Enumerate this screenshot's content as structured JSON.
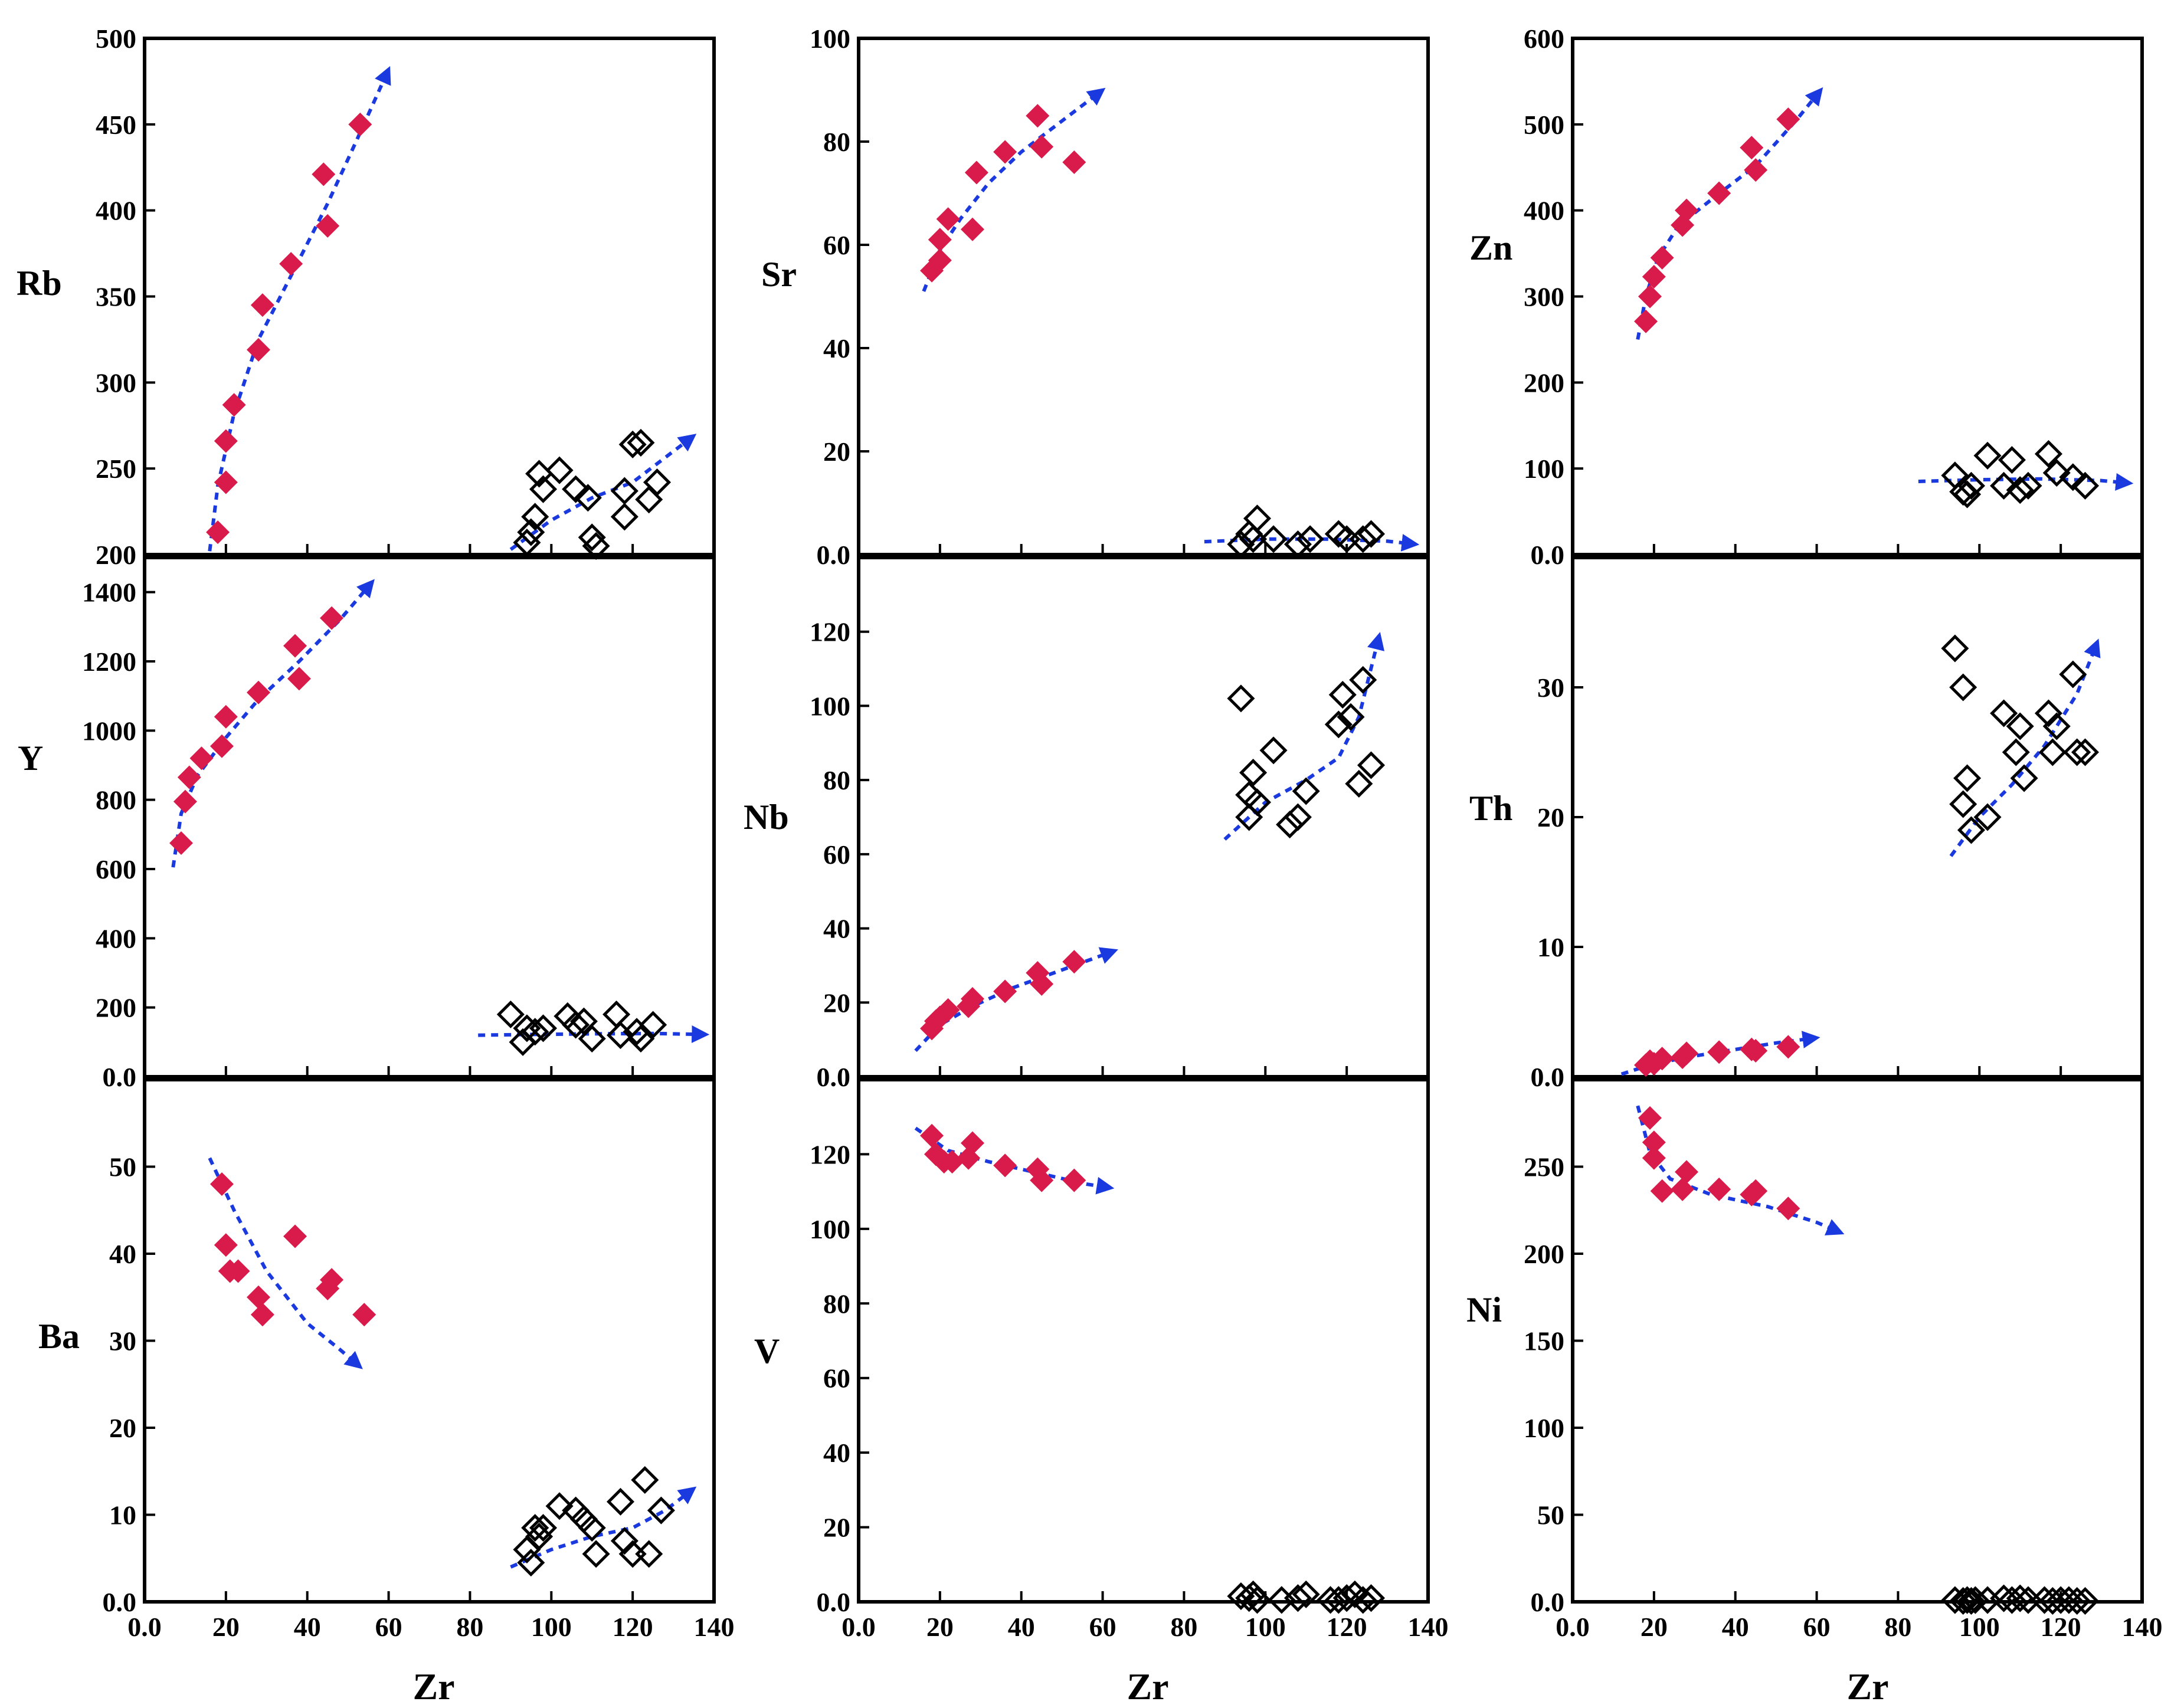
{
  "figure": {
    "xlabel": "Zr"
  },
  "colors": {
    "filled": "#d81b4a",
    "open": "#000000",
    "trend": "#1a3adf"
  },
  "chart_data": [
    {
      "type": "scatter",
      "name": "rb",
      "ylabel": "Rb",
      "xlim": [
        0,
        140
      ],
      "ylim": [
        200,
        500
      ],
      "yticks": [
        200,
        250,
        300,
        350,
        400,
        450,
        500
      ],
      "ytick_labels": [
        "200",
        "250",
        "300",
        "350",
        "400",
        "450",
        "500"
      ],
      "series": [
        {
          "name": "filled",
          "x": [
            18,
            20,
            20,
            22,
            28,
            29,
            36,
            44,
            45,
            53
          ],
          "y": [
            213,
            242,
            266,
            287,
            319,
            345,
            369,
            421,
            391,
            450
          ]
        },
        {
          "name": "open",
          "x": [
            94,
            95,
            96,
            97,
            98,
            102,
            106,
            109,
            110,
            111,
            118,
            118,
            120,
            122,
            124,
            126
          ],
          "y": [
            207,
            213,
            222,
            247,
            238,
            249,
            238,
            233,
            210,
            205,
            222,
            237,
            264,
            265,
            232,
            242
          ]
        }
      ],
      "trends": [
        {
          "x": [
            16,
            18,
            22,
            28,
            36,
            45,
            52,
            60
          ],
          "y": [
            202,
            240,
            282,
            325,
            362,
            404,
            440,
            482
          ]
        },
        {
          "x": [
            90,
            100,
            110,
            120,
            135
          ],
          "y": [
            203,
            220,
            233,
            242,
            269
          ]
        }
      ]
    },
    {
      "type": "scatter",
      "name": "sr",
      "ylabel": "Sr",
      "xlim": [
        0,
        140
      ],
      "ylim": [
        0,
        100
      ],
      "yticks": [
        0,
        20,
        40,
        60,
        80,
        100
      ],
      "ytick_labels": [
        "0.0",
        "20",
        "40",
        "60",
        "80",
        "100"
      ],
      "series": [
        {
          "name": "filled",
          "x": [
            18,
            20,
            20,
            22,
            28,
            29,
            36,
            44,
            45,
            53
          ],
          "y": [
            55,
            57,
            61,
            65,
            63,
            74,
            78,
            85,
            79,
            76
          ]
        },
        {
          "name": "open",
          "x": [
            94,
            96,
            97,
            98,
            102,
            108,
            111,
            118,
            120,
            124,
            126
          ],
          "y": [
            2,
            4,
            3,
            7,
            3,
            2,
            3,
            4,
            3,
            3,
            4
          ]
        }
      ],
      "trends": [
        {
          "x": [
            16,
            20,
            25,
            32,
            40,
            50,
            60
          ],
          "y": [
            51,
            59,
            65,
            72,
            78,
            84,
            90
          ]
        },
        {
          "x": [
            85,
            100,
            115,
            130,
            137
          ],
          "y": [
            2.5,
            3,
            3,
            2.6,
            2
          ]
        }
      ]
    },
    {
      "type": "scatter",
      "name": "zn",
      "ylabel": "Zn",
      "xlim": [
        0,
        140
      ],
      "ylim": [
        0,
        600
      ],
      "yticks": [
        0,
        100,
        200,
        300,
        400,
        500,
        600
      ],
      "ytick_labels": [
        "0.0",
        "100",
        "200",
        "300",
        "400",
        "500",
        "600"
      ],
      "series": [
        {
          "name": "filled",
          "x": [
            18,
            19,
            20,
            22,
            27,
            28,
            36,
            44,
            45,
            53
          ],
          "y": [
            271,
            300,
            323,
            345,
            383,
            400,
            420,
            473,
            447,
            506
          ]
        },
        {
          "name": "open",
          "x": [
            94,
            96,
            97,
            98,
            102,
            106,
            108,
            110,
            112,
            117,
            119,
            123,
            126
          ],
          "y": [
            92,
            73,
            70,
            80,
            115,
            80,
            110,
            75,
            80,
            117,
            95,
            90,
            80
          ]
        }
      ],
      "trends": [
        {
          "x": [
            16,
            18,
            21,
            26,
            35,
            45,
            55,
            61
          ],
          "y": [
            250,
            300,
            345,
            382,
            416,
            452,
            505,
            540
          ]
        },
        {
          "x": [
            85,
            100,
            115,
            130,
            137
          ],
          "y": [
            85,
            87,
            88,
            86,
            83
          ]
        }
      ]
    },
    {
      "type": "scatter",
      "name": "y",
      "ylabel": "Y",
      "xlim": [
        0,
        140
      ],
      "ylim": [
        0,
        1500
      ],
      "yticks": [
        0,
        200,
        400,
        600,
        800,
        1000,
        1200,
        1400
      ],
      "ytick_labels": [
        "0.0",
        "200",
        "400",
        "600",
        "800",
        "1000",
        "1200",
        "1400"
      ],
      "series": [
        {
          "name": "filled",
          "x": [
            9,
            10,
            11,
            14,
            19,
            20,
            28,
            37,
            38,
            46
          ],
          "y": [
            675,
            795,
            865,
            920,
            955,
            1040,
            1110,
            1245,
            1150,
            1325
          ]
        },
        {
          "name": "open",
          "x": [
            90,
            93,
            94,
            96,
            98,
            104,
            106,
            108,
            110,
            116,
            117,
            121,
            122,
            125
          ],
          "y": [
            180,
            100,
            140,
            130,
            140,
            175,
            150,
            160,
            110,
            180,
            120,
            130,
            110,
            150
          ]
        }
      ],
      "trends": [
        {
          "x": [
            7,
            9,
            13,
            20,
            28,
            38,
            48,
            56
          ],
          "y": [
            605,
            760,
            870,
            980,
            1090,
            1200,
            1320,
            1430
          ]
        },
        {
          "x": [
            82,
            95,
            110,
            125,
            138
          ],
          "y": [
            120,
            122,
            124,
            125,
            122
          ]
        }
      ]
    },
    {
      "type": "scatter",
      "name": "nb",
      "ylabel": "Nb",
      "xlim": [
        0,
        140
      ],
      "ylim": [
        0,
        140
      ],
      "yticks": [
        0,
        20,
        40,
        60,
        80,
        100,
        120
      ],
      "ytick_labels": [
        "0.0",
        "20",
        "40",
        "60",
        "80",
        "100",
        "120"
      ],
      "series": [
        {
          "name": "filled",
          "x": [
            18,
            19,
            20,
            22,
            27,
            28,
            36,
            44,
            45,
            53
          ],
          "y": [
            13,
            15,
            16,
            18,
            19,
            21,
            23,
            28,
            25,
            31
          ]
        },
        {
          "name": "open",
          "x": [
            94,
            96,
            96,
            97,
            98,
            102,
            106,
            108,
            110,
            118,
            119,
            121,
            123,
            124,
            126
          ],
          "y": [
            102,
            70,
            76,
            82,
            74,
            88,
            68,
            70,
            77,
            95,
            103,
            97,
            79,
            107,
            84
          ]
        }
      ],
      "trends": [
        {
          "x": [
            14,
            20,
            28,
            38,
            48,
            58,
            63
          ],
          "y": [
            7,
            14,
            19,
            24,
            28,
            32,
            34
          ]
        },
        {
          "x": [
            90,
            100,
            110,
            118,
            123,
            128
          ],
          "y": [
            64,
            74,
            80,
            86,
            97,
            119
          ]
        }
      ]
    },
    {
      "type": "scatter",
      "name": "th",
      "ylabel": "Th",
      "xlim": [
        0,
        140
      ],
      "ylim": [
        0,
        40
      ],
      "yticks": [
        0,
        10,
        20,
        30
      ],
      "ytick_labels": [
        "0.0",
        "10",
        "20",
        "30"
      ],
      "series": [
        {
          "name": "filled",
          "x": [
            18,
            19,
            20,
            22,
            27,
            28,
            36,
            44,
            45,
            53
          ],
          "y": [
            0.9,
            1.2,
            1.0,
            1.4,
            1.5,
            1.8,
            1.9,
            2.1,
            2.0,
            2.3
          ]
        },
        {
          "name": "open",
          "x": [
            94,
            96,
            96,
            97,
            98,
            102,
            106,
            109,
            110,
            111,
            117,
            118,
            119,
            123,
            124,
            126
          ],
          "y": [
            33,
            21,
            30,
            23,
            19,
            20,
            28,
            25,
            27,
            23,
            28,
            25,
            27,
            31,
            25,
            25
          ]
        }
      ],
      "trends": [
        {
          "x": [
            12,
            20,
            30,
            40,
            50,
            60
          ],
          "y": [
            0.2,
            1.0,
            1.6,
            2.1,
            2.6,
            3.0
          ]
        },
        {
          "x": [
            93,
            100,
            108,
            116,
            124,
            129
          ],
          "y": [
            17,
            20,
            22.5,
            25.5,
            29.5,
            33.5
          ]
        }
      ]
    },
    {
      "type": "scatter",
      "name": "ba",
      "ylabel": "Ba",
      "xlim": [
        0,
        140
      ],
      "ylim": [
        0,
        60
      ],
      "yticks": [
        0,
        10,
        20,
        30,
        40,
        50
      ],
      "ytick_labels": [
        "0.0",
        "10",
        "20",
        "30",
        "40",
        "50"
      ],
      "series": [
        {
          "name": "filled",
          "x": [
            19,
            20,
            21,
            23,
            28,
            29,
            37,
            45,
            46,
            54
          ],
          "y": [
            48,
            41,
            38,
            38,
            35,
            33,
            42,
            36,
            37,
            33
          ]
        },
        {
          "name": "open",
          "x": [
            94,
            95,
            96,
            97,
            98,
            102,
            106,
            108,
            110,
            111,
            117,
            118,
            120,
            123,
            124,
            127
          ],
          "y": [
            6,
            4.5,
            8.5,
            7.5,
            8.5,
            11,
            10.5,
            9.5,
            8.5,
            5.5,
            11.5,
            7,
            5.5,
            14,
            5.5,
            10.5
          ]
        }
      ],
      "trends": [
        {
          "x": [
            16,
            22,
            30,
            40,
            48,
            53
          ],
          "y": [
            51,
            45,
            38,
            32,
            29,
            27
          ]
        },
        {
          "x": [
            90,
            100,
            110,
            120,
            128,
            135
          ],
          "y": [
            4,
            6,
            7.5,
            8.5,
            10.5,
            13
          ]
        }
      ]
    },
    {
      "type": "scatter",
      "name": "v",
      "ylabel": "V",
      "xlim": [
        0,
        140
      ],
      "ylim": [
        0,
        140
      ],
      "yticks": [
        0,
        20,
        40,
        60,
        80,
        100,
        120
      ],
      "ytick_labels": [
        "0.0",
        "20",
        "40",
        "60",
        "80",
        "100",
        "120"
      ],
      "series": [
        {
          "name": "filled",
          "x": [
            18,
            19,
            21,
            23,
            27,
            28,
            36,
            44,
            45,
            53
          ],
          "y": [
            125,
            120,
            118,
            118,
            119,
            123,
            117,
            116,
            113,
            113
          ]
        },
        {
          "name": "open",
          "x": [
            94,
            96,
            97,
            98,
            104,
            108,
            110,
            116,
            118,
            120,
            122,
            124,
            126
          ],
          "y": [
            1.5,
            1,
            2,
            0.5,
            0.5,
            1,
            2,
            0.5,
            0.5,
            1,
            2,
            0.5,
            1
          ]
        }
      ],
      "trends": [
        {
          "x": [
            14,
            22,
            32,
            44,
            56,
            62
          ],
          "y": [
            127,
            121,
            118,
            115,
            112,
            111
          ]
        }
      ]
    },
    {
      "type": "scatter",
      "name": "ni",
      "ylabel": "Ni",
      "xlim": [
        0,
        140
      ],
      "ylim": [
        0,
        300
      ],
      "yticks": [
        0,
        50,
        100,
        150,
        200,
        250
      ],
      "ytick_labels": [
        "0.0",
        "50",
        "100",
        "150",
        "200",
        "250"
      ],
      "series": [
        {
          "name": "filled",
          "x": [
            19,
            20,
            20,
            22,
            27,
            28,
            36,
            44,
            45,
            53
          ],
          "y": [
            278,
            264,
            255,
            236,
            237,
            247,
            237,
            234,
            236,
            226
          ]
        },
        {
          "name": "open",
          "x": [
            94,
            96,
            97,
            98,
            99,
            102,
            106,
            108,
            110,
            112,
            116,
            118,
            120,
            122,
            124,
            126
          ],
          "y": [
            1,
            0.5,
            1,
            0.5,
            1,
            1,
            2,
            1,
            2,
            1,
            1,
            0.5,
            1,
            1,
            0.5,
            0.5
          ]
        }
      ],
      "trends": [
        {
          "x": [
            16,
            19,
            24,
            34,
            48,
            60,
            66
          ],
          "y": [
            285,
            258,
            243,
            234,
            227,
            218,
            212
          ]
        }
      ]
    }
  ],
  "shared_xticks": [
    0,
    20,
    40,
    60,
    80,
    100,
    120,
    140
  ],
  "shared_xtick_labels": [
    "0.0",
    "20",
    "40",
    "60",
    "80",
    "100",
    "120",
    "140"
  ]
}
